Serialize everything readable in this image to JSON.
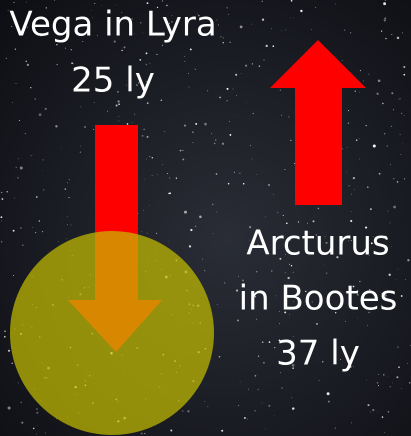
{
  "vega": {
    "name": "Vega in Lyra",
    "distance": "25 ly"
  },
  "arcturus": {
    "name_line1": "Arcturus",
    "name_line2": "in Bootes",
    "distance": "37 ly"
  }
}
